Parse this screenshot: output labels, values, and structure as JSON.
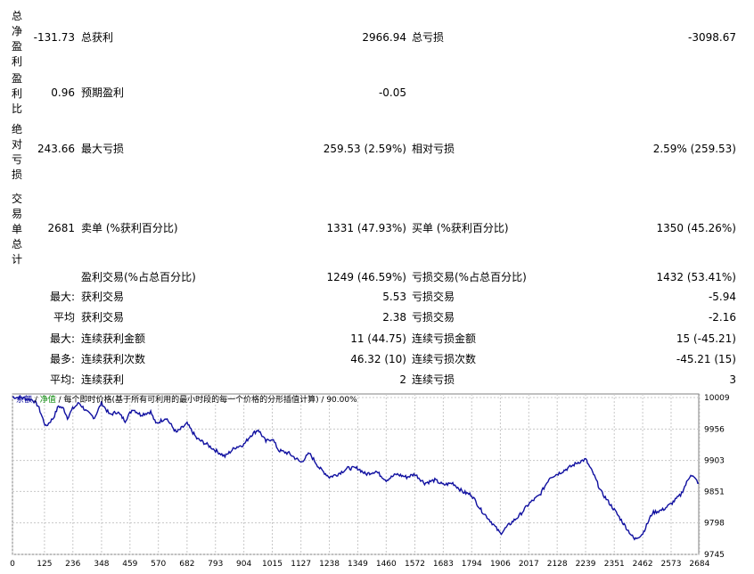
{
  "sidebar": [
    {
      "label": "总净盈利",
      "value": "-131.73"
    },
    {
      "label": "盈利比",
      "value": "0.96"
    },
    {
      "label": "绝对亏损",
      "value": "243.66"
    },
    {
      "label": "交易单总计",
      "value": "2681"
    }
  ],
  "stats": {
    "gross_profit_label": "总获利",
    "gross_profit_value": "2966.94",
    "gross_loss_label": "总亏损",
    "gross_loss_value": "-3098.67",
    "expected_payoff_label": "预期盈利",
    "expected_payoff_value": "-0.05",
    "max_drawdown_label": "最大亏损",
    "max_drawdown_value": "259.53 (2.59%)",
    "relative_drawdown_label": "相对亏损",
    "relative_drawdown_value": "2.59% (259.53)",
    "short_trades_label": "卖单 (%获利百分比)",
    "short_trades_value": "1331 (47.93%)",
    "long_trades_label": "买单 (%获利百分比)",
    "long_trades_value": "1350 (45.26%)",
    "profit_trades_label": "盈利交易(%占总百分比)",
    "profit_trades_value": "1249 (46.59%)",
    "loss_trades_label": "亏损交易(%占总百分比)",
    "loss_trades_value": "1432 (53.41%)"
  },
  "detail_rows": [
    {
      "prefix": "最大:",
      "left_label": "获利交易",
      "left_value": "5.53",
      "right_label": "亏损交易",
      "right_value": "-5.94"
    },
    {
      "prefix": "平均",
      "left_label": "获利交易",
      "left_value": "2.38",
      "right_label": "亏损交易",
      "right_value": "-2.16"
    },
    {
      "prefix": "最大:",
      "left_label": "连续获利金额",
      "left_value": "11 (44.75)",
      "right_label": "连续亏损金额",
      "right_value": "15 (-45.21)"
    },
    {
      "prefix": "最多:",
      "left_label": "连续获利次数",
      "left_value": "46.32 (10)",
      "right_label": "连续亏损次数",
      "right_value": "-45.21 (15)"
    },
    {
      "prefix": "平均:",
      "left_label": "连续获利",
      "left_value": "2",
      "right_label": "连续亏损",
      "right_value": "3"
    }
  ],
  "chart_legend": {
    "balance": "余额",
    "sep1": " / ",
    "equity": "净值",
    "rest": " / 每个即时价格(基于所有可利用的最小时段的每一个价格的分形插值计算) / 90.00%"
  },
  "chart_data": {
    "type": "line",
    "x_ticks": [
      "0",
      "125",
      "236",
      "348",
      "459",
      "570",
      "682",
      "793",
      "904",
      "1015",
      "1127",
      "1238",
      "1349",
      "1460",
      "1572",
      "1683",
      "1794",
      "1906",
      "2017",
      "2128",
      "2239",
      "2351",
      "2462",
      "2573",
      "2684"
    ],
    "y_ticks": [
      "10009",
      "9956",
      "9903",
      "9851",
      "9798",
      "9745"
    ],
    "xlim": [
      0,
      2681
    ],
    "ylim": [
      9745,
      10015
    ],
    "grid": true,
    "colors": {
      "balance": "#1010a0",
      "grid": "#c8c8c8"
    },
    "series": [
      {
        "key": "balance",
        "x": [
          0,
          40,
          80,
          100,
          130,
          160,
          180,
          200,
          215,
          235,
          260,
          290,
          320,
          348,
          380,
          410,
          440,
          470,
          500,
          540,
          560,
          600,
          640,
          682,
          720,
          760,
          793,
          830,
          870,
          904,
          930,
          960,
          990,
          1015,
          1040,
          1080,
          1127,
          1160,
          1200,
          1238,
          1270,
          1310,
          1349,
          1380,
          1420,
          1460,
          1500,
          1540,
          1572,
          1610,
          1650,
          1683,
          1720,
          1760,
          1794,
          1830,
          1870,
          1906,
          1940,
          1980,
          2017,
          2060,
          2100,
          2128,
          2170,
          2210,
          2239,
          2270,
          2300,
          2351,
          2390,
          2430,
          2462,
          2500,
          2540,
          2573,
          2610,
          2650,
          2681
        ],
        "y": [
          10010,
          10008,
          10005,
          9995,
          9960,
          9975,
          9995,
          9990,
          9975,
          9990,
          10000,
          9985,
          9975,
          10000,
          9980,
          9985,
          9970,
          9990,
          9980,
          9985,
          9965,
          9975,
          9950,
          9965,
          9940,
          9930,
          9920,
          9910,
          9925,
          9930,
          9945,
          9955,
          9935,
          9940,
          9920,
          9915,
          9900,
          9915,
          9890,
          9875,
          9880,
          9890,
          9890,
          9880,
          9885,
          9870,
          9880,
          9875,
          9880,
          9865,
          9870,
          9862,
          9865,
          9850,
          9845,
          9820,
          9800,
          9780,
          9795,
          9810,
          9830,
          9845,
          9875,
          9880,
          9890,
          9900,
          9905,
          9880,
          9850,
          9820,
          9795,
          9770,
          9780,
          9815,
          9820,
          9830,
          9845,
          9880,
          9865
        ]
      }
    ]
  }
}
